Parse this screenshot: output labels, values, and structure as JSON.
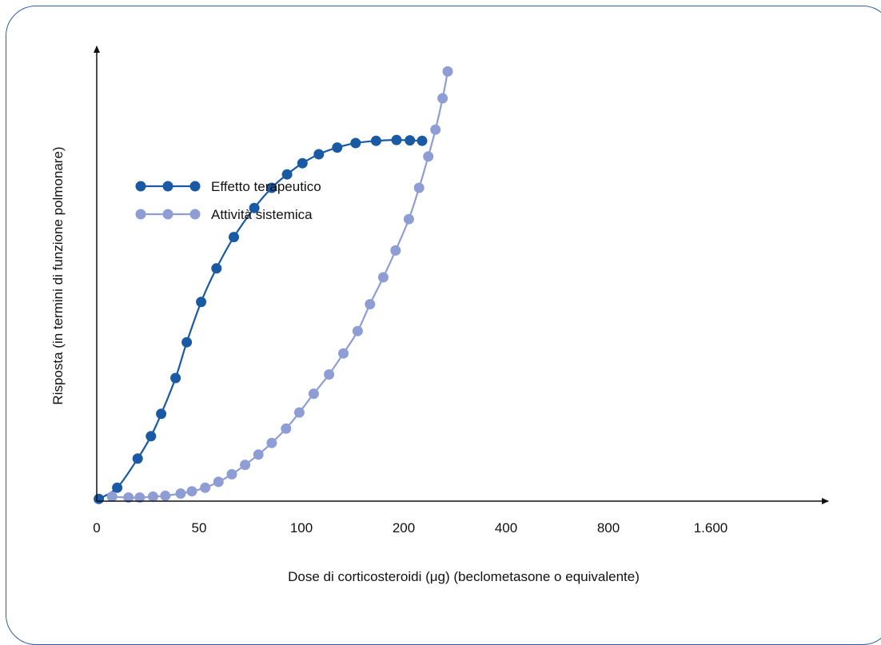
{
  "chart_data": {
    "type": "line",
    "xlabel": "Dose di corticosteroidi (μg) (beclometasone o equivalente)",
    "ylabel": "Risposta (in termini di funzione polmonare)",
    "x_ticks": [
      "0",
      "50",
      "100",
      "200",
      "400",
      "800",
      "1.600"
    ],
    "x_tick_positions": [
      0,
      1,
      2,
      3,
      4,
      5,
      6
    ],
    "xlim": [
      0,
      7.3
    ],
    "ylim": [
      0,
      1
    ],
    "grid": false,
    "legend_position": "top-left",
    "series": [
      {
        "name": "Effetto terapeutico",
        "color": "#1a5aa5",
        "points": [
          [
            0.02,
            0.005
          ],
          [
            0.2,
            0.03
          ],
          [
            0.4,
            0.095
          ],
          [
            0.53,
            0.145
          ],
          [
            0.63,
            0.195
          ],
          [
            0.77,
            0.275
          ],
          [
            0.88,
            0.355
          ],
          [
            1.02,
            0.445
          ],
          [
            1.17,
            0.52
          ],
          [
            1.34,
            0.59
          ],
          [
            1.54,
            0.655
          ],
          [
            1.71,
            0.7
          ],
          [
            1.86,
            0.73
          ],
          [
            2.01,
            0.755
          ],
          [
            2.17,
            0.775
          ],
          [
            2.35,
            0.79
          ],
          [
            2.53,
            0.8
          ],
          [
            2.73,
            0.805
          ],
          [
            2.93,
            0.807
          ],
          [
            3.06,
            0.806
          ],
          [
            3.18,
            0.805
          ]
        ]
      },
      {
        "name": "Attività sistemica",
        "color": "#8e9ed4",
        "points": [
          [
            0.15,
            0.01
          ],
          [
            0.31,
            0.008
          ],
          [
            0.42,
            0.008
          ],
          [
            0.55,
            0.01
          ],
          [
            0.67,
            0.012
          ],
          [
            0.82,
            0.017
          ],
          [
            0.93,
            0.022
          ],
          [
            1.06,
            0.03
          ],
          [
            1.19,
            0.043
          ],
          [
            1.32,
            0.06
          ],
          [
            1.45,
            0.081
          ],
          [
            1.58,
            0.104
          ],
          [
            1.71,
            0.13
          ],
          [
            1.85,
            0.162
          ],
          [
            1.98,
            0.198
          ],
          [
            2.12,
            0.24
          ],
          [
            2.27,
            0.283
          ],
          [
            2.41,
            0.33
          ],
          [
            2.55,
            0.38
          ],
          [
            2.67,
            0.44
          ],
          [
            2.8,
            0.5
          ],
          [
            2.92,
            0.56
          ],
          [
            3.05,
            0.63
          ],
          [
            3.15,
            0.7
          ],
          [
            3.24,
            0.77
          ],
          [
            3.31,
            0.83
          ],
          [
            3.38,
            0.9
          ],
          [
            3.43,
            0.96
          ]
        ]
      }
    ]
  }
}
